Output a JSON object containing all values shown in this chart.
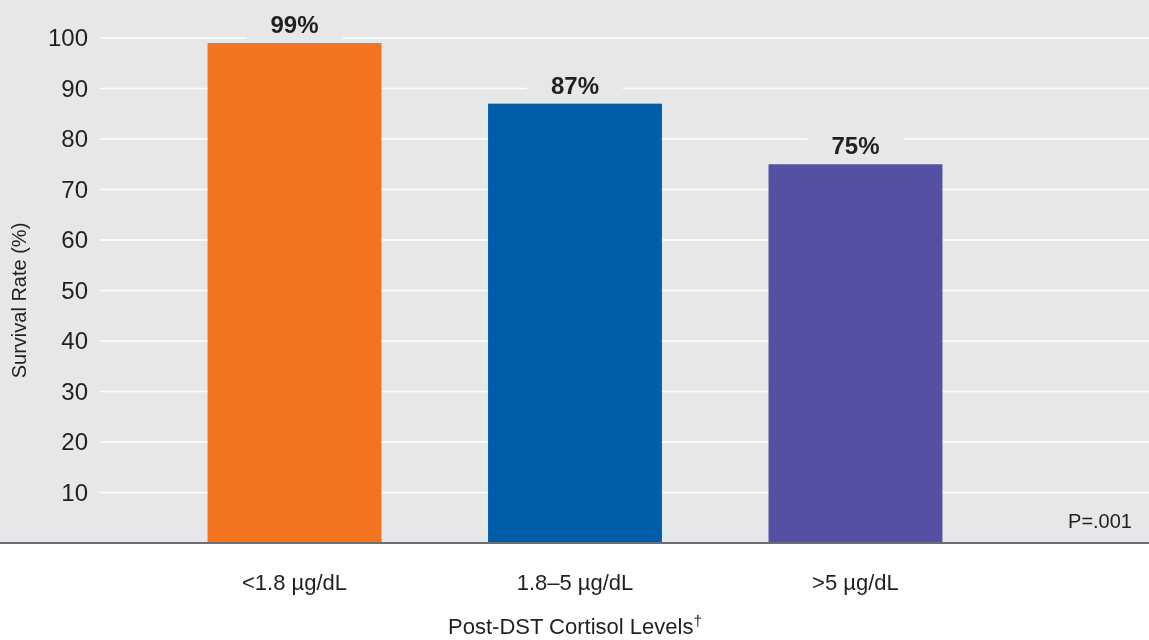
{
  "chart_data": {
    "type": "bar",
    "categories": [
      "<1.8 µg/dL",
      "1.8–5 µg/dL",
      ">5 µg/dL"
    ],
    "values": [
      99,
      87,
      75
    ],
    "colors": [
      "#f37321",
      "#005daa",
      "#5450a4"
    ],
    "value_labels": [
      "99%",
      "87%",
      "75%"
    ],
    "ylim": [
      0,
      100
    ],
    "yticks": [
      10,
      20,
      30,
      40,
      50,
      60,
      70,
      80,
      90,
      100
    ],
    "grid": "y",
    "xlabel": "Post-DST Cortisol Levels$^{†}$",
    "ylabel": "Survival Rate (%)",
    "annotations": [
      "P=.001"
    ]
  }
}
